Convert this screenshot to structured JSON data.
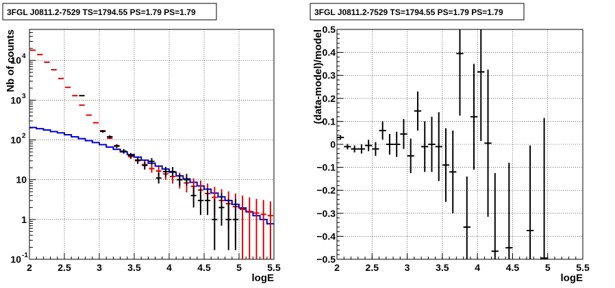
{
  "chart_data": [
    {
      "type": "histogram",
      "title": "3FGL J0811.2-7529 TS=1794.55 PS=1.79 PS=1.79",
      "xlabel": "logE",
      "ylabel": "Nb of counts",
      "xlim": [
        2,
        5.5
      ],
      "ylim": [
        0.1,
        60000
      ],
      "yscale": "log",
      "grid": true,
      "x_ticks": [
        "2",
        "2.5",
        "3",
        "3.5",
        "4",
        "4.5",
        "5",
        "5.5"
      ],
      "y_ticks": [
        {
          "value": 0.1,
          "label": "10",
          "exp": "-1"
        },
        {
          "value": 1,
          "label": "1",
          "exp": ""
        },
        {
          "value": 10,
          "label": "10",
          "exp": ""
        },
        {
          "value": 100,
          "label": "10",
          "exp": "2"
        },
        {
          "value": 1000,
          "label": "10",
          "exp": "3"
        },
        {
          "value": 10000,
          "label": "10",
          "exp": "4"
        }
      ],
      "bin_edges": [
        2,
        2.1,
        2.2,
        2.3,
        2.4,
        2.5,
        2.6,
        2.7,
        2.8,
        2.9,
        3,
        3.1,
        3.2,
        3.3,
        3.4,
        3.5,
        3.6,
        3.7,
        3.8,
        3.9,
        4,
        4.1,
        4.2,
        4.3,
        4.4,
        4.5,
        4.6,
        4.7,
        4.8,
        4.9,
        5,
        5.1,
        5.2,
        5.3,
        5.4,
        5.5
      ],
      "series": [
        {
          "style": "step",
          "color": "#0000cc",
          "values": [
            205,
            192,
            178,
            162,
            150,
            135,
            120,
            108,
            96,
            86,
            76,
            66,
            58,
            50,
            43,
            37,
            31,
            26,
            22,
            18.5,
            15.5,
            12.5,
            10.5,
            8.6,
            7,
            5.8,
            4.6,
            3.7,
            3,
            2.4,
            1.95,
            1.55,
            1.25,
            1.0,
            0.78
          ]
        },
        {
          "style": "errorbar",
          "color": "#dd0000",
          "values": [
            18000,
            14000,
            9000,
            5800,
            3500,
            2100,
            1300,
            750,
            420,
            270,
            170,
            110,
            72,
            52,
            38,
            30,
            24,
            19,
            16.5,
            14,
            12,
            10,
            8.3,
            6.8,
            5.5,
            4.5,
            3.6,
            3.0,
            2.5,
            2.1,
            1.8,
            1.6,
            1.45,
            1.35,
            1.25
          ],
          "err_low": [
            0,
            0,
            0,
            0,
            0,
            0,
            0,
            0,
            0,
            0,
            0,
            0,
            6,
            5,
            5,
            5,
            5,
            4,
            4,
            4,
            4,
            4,
            3.5,
            3,
            3,
            2.7,
            2.3,
            2.1,
            1.95,
            1.85,
            1.75,
            1.6,
            1.44,
            1.34,
            1.24
          ],
          "err_high": [
            0,
            0,
            0,
            0,
            0,
            0,
            0,
            0,
            0,
            0,
            0,
            0,
            6,
            6,
            6,
            6,
            6,
            5,
            5,
            5,
            5,
            5,
            4.5,
            4,
            4,
            3.5,
            3,
            2.8,
            2.6,
            2.4,
            2.2,
            2.0,
            1.85,
            1.75,
            1.6
          ]
        },
        {
          "style": "errorbar",
          "color": "#000000",
          "values": [
            null,
            null,
            null,
            null,
            null,
            null,
            null,
            1300,
            null,
            null,
            165,
            120,
            70,
            52,
            41,
            31,
            23,
            29,
            11,
            16,
            16,
            10,
            10,
            4,
            3,
            3,
            1,
            2,
            1,
            1,
            null,
            null,
            null,
            null,
            null
          ],
          "err_low": [
            0,
            0,
            0,
            0,
            0,
            0,
            0,
            40,
            0,
            0,
            13,
            11,
            8,
            7,
            6,
            6,
            5,
            5,
            3,
            4,
            4,
            3,
            3,
            2,
            1.7,
            1.7,
            0.83,
            1.3,
            0.83,
            0.83,
            0,
            0,
            0,
            0,
            0
          ],
          "err_high": [
            0,
            0,
            0,
            0,
            0,
            0,
            0,
            40,
            0,
            0,
            13,
            11,
            8,
            7,
            6,
            6,
            5,
            6,
            4,
            5,
            5,
            4,
            4,
            3,
            3,
            3,
            2.3,
            2.6,
            2.3,
            2.3,
            0,
            0,
            0,
            0,
            0
          ]
        }
      ]
    },
    {
      "type": "scatter",
      "title": "3FGL J0811.2-7529 TS=1794.55 PS=1.79 PS=1.79",
      "xlabel": "logE",
      "ylabel": "(data-model)/model",
      "xlim": [
        2,
        5.5
      ],
      "ylim": [
        -0.5,
        0.5
      ],
      "grid": true,
      "x_ticks": [
        "2",
        "2.5",
        "3",
        "3.5",
        "4",
        "4.5",
        "5",
        "5.5"
      ],
      "y_ticks": [
        "-0.5",
        "-0.4",
        "-0.3",
        "-0.2",
        "-0.1",
        "0",
        "0.1",
        "0.2",
        "0.3",
        "0.4",
        "0.5"
      ],
      "series": [
        {
          "color": "#000000",
          "x": [
            2.05,
            2.15,
            2.25,
            2.35,
            2.45,
            2.55,
            2.65,
            2.75,
            2.85,
            2.95,
            3.05,
            3.15,
            3.25,
            3.35,
            3.45,
            3.55,
            3.65,
            3.75,
            3.85,
            3.95,
            4.05,
            4.15,
            4.25,
            4.45,
            4.75,
            4.95
          ],
          "y": [
            0.03,
            -0.01,
            -0.02,
            -0.02,
            -0.005,
            -0.02,
            0.06,
            0.0,
            0.0,
            0.045,
            -0.05,
            0.145,
            -0.01,
            0.0,
            -0.01,
            -0.09,
            -0.12,
            0.395,
            -0.36,
            0.12,
            0.315,
            0.005,
            -0.465,
            -0.45,
            -0.375,
            -0.495
          ],
          "err": [
            0.01,
            0.012,
            0.015,
            0.02,
            0.025,
            0.03,
            0.04,
            0.045,
            0.055,
            0.065,
            0.075,
            0.085,
            0.11,
            0.12,
            0.15,
            0.16,
            0.18,
            0.27,
            0.22,
            0.23,
            0.3,
            0.32,
            0.34,
            0.37,
            0.37,
            0.61
          ]
        }
      ]
    }
  ]
}
